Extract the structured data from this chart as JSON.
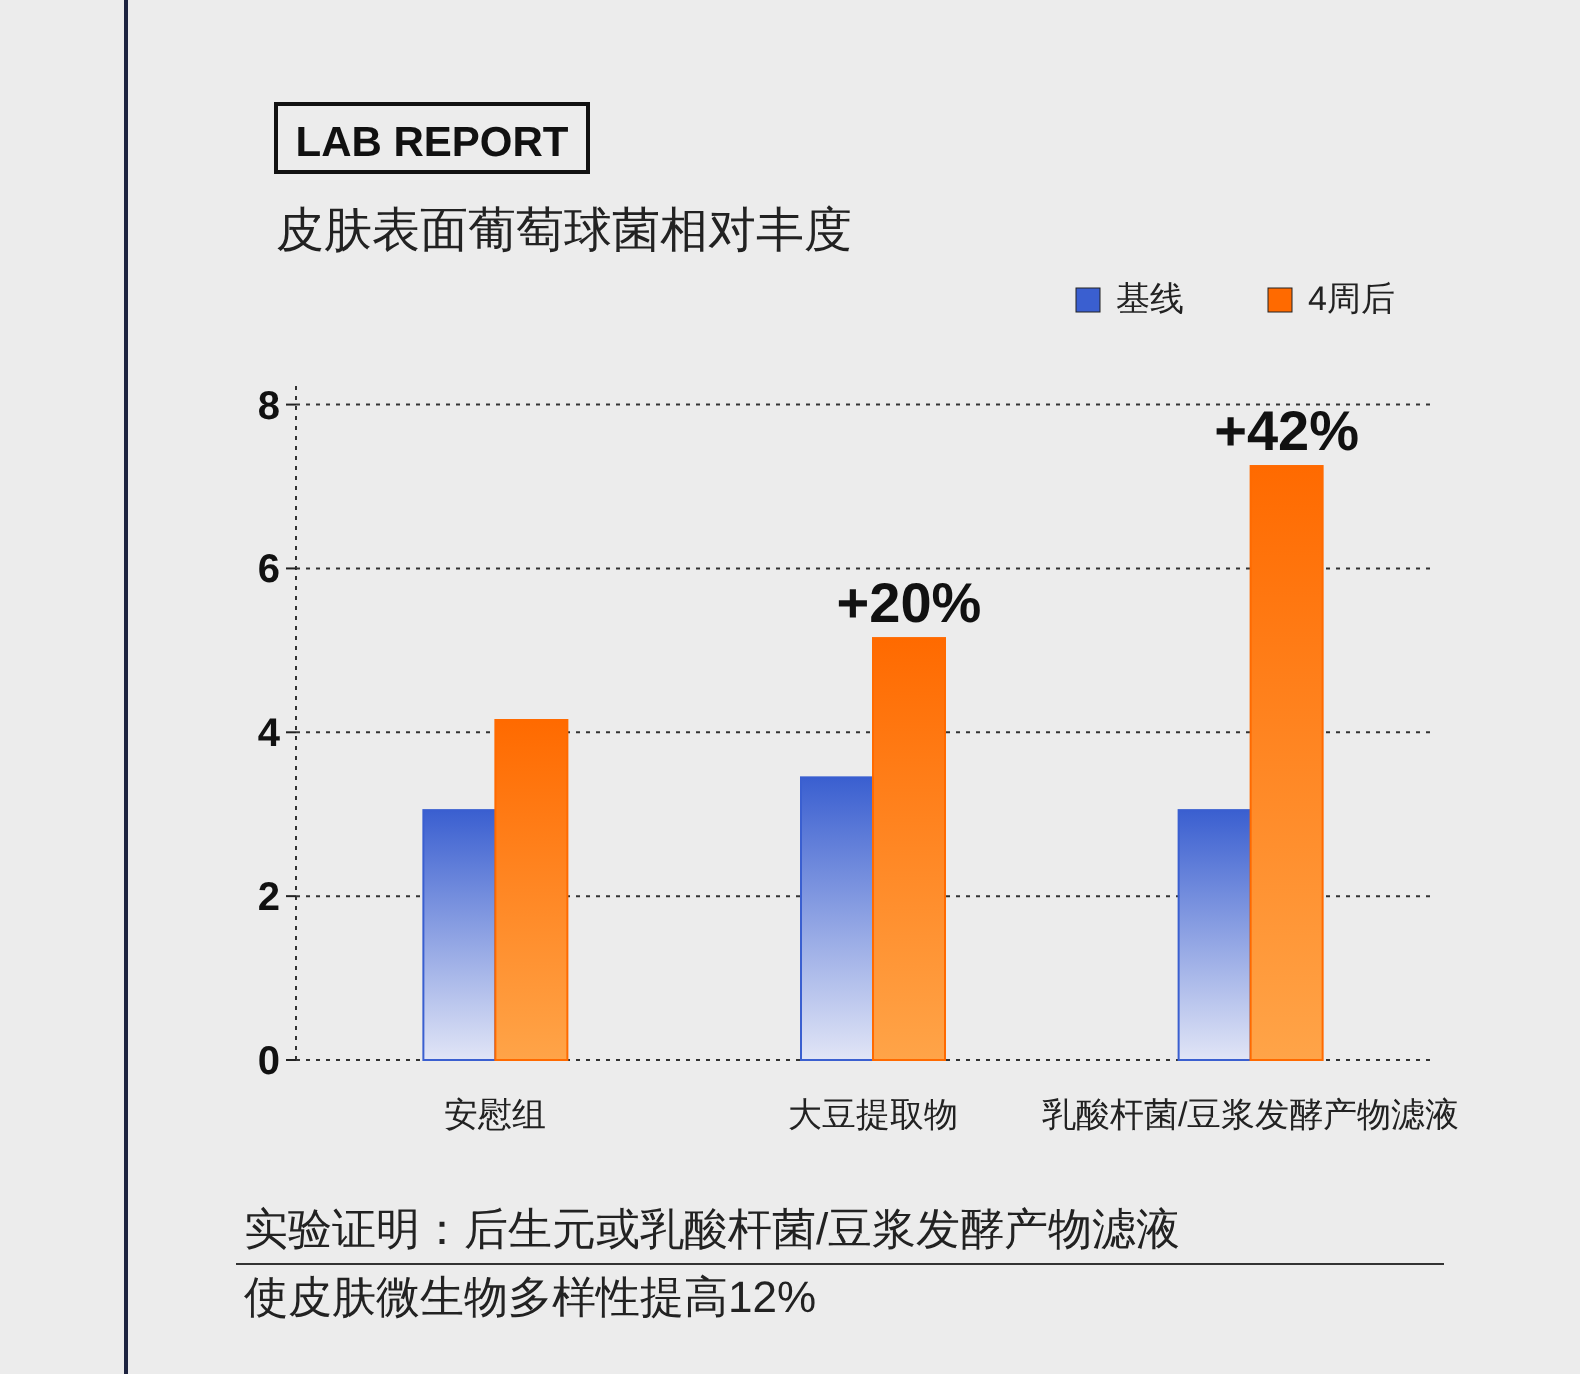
{
  "chart_data": {
    "type": "bar",
    "title": "LAB REPORT",
    "subtitle": "皮肤表面葡萄球菌相对丰度",
    "categories": [
      "安慰组",
      "大豆提取物",
      "乳酸杆菌/豆浆发酵产物滤液"
    ],
    "series": [
      {
        "name": "基线",
        "color": "#3a5fd0",
        "values": [
          3.05,
          3.45,
          3.05
        ]
      },
      {
        "name": "4周后",
        "color": "#ff6a00",
        "values": [
          4.15,
          5.15,
          7.25
        ]
      }
    ],
    "ylim": [
      0,
      8.3
    ],
    "yticks": [
      0,
      2,
      4,
      6,
      8
    ],
    "grid": "y",
    "legend": "top right",
    "annotations": [
      {
        "text": "+20%",
        "x": "大豆提取物",
        "y": 5.15
      },
      {
        "text": "+42%",
        "x": "乳酸杆菌/豆浆发酵产物滤液",
        "y": 7.25
      },
      "实验证明：后生元或乳酸杆菌/豆浆发酵产物滤液",
      "使皮肤微生物多样性提高12%"
    ]
  }
}
